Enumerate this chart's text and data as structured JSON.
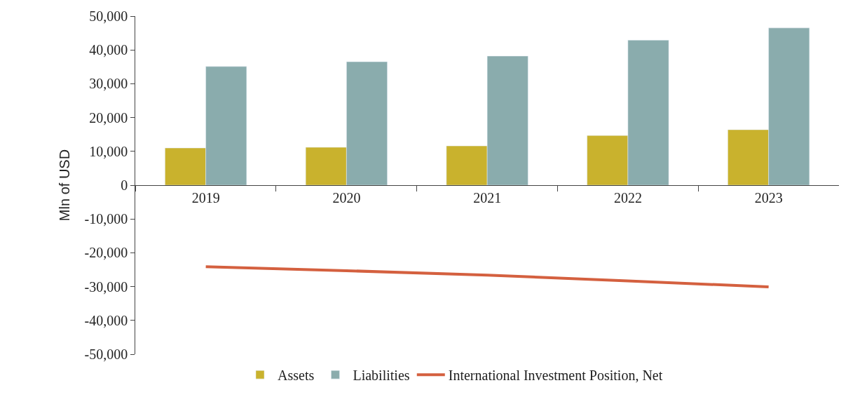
{
  "chart_data": {
    "type": "bar",
    "ylabel": "Mln of USD",
    "categories": [
      "2019",
      "2020",
      "2021",
      "2022",
      "2023"
    ],
    "series": [
      {
        "name": "Assets",
        "color": "#c9b22d",
        "values": [
          11000,
          11200,
          11600,
          14700,
          16400
        ]
      },
      {
        "name": "Liabilities",
        "color": "#8aacad",
        "values": [
          35100,
          36500,
          38200,
          42900,
          46500
        ]
      },
      {
        "name": "International Investment Position, Net",
        "type": "line",
        "color": "#d4603f",
        "values": [
          -24100,
          -25300,
          -26600,
          -28300,
          -30100
        ]
      }
    ],
    "ylim": [
      -50000,
      50000
    ],
    "yticks": [
      {
        "value": -50000,
        "label": "-50,000"
      },
      {
        "value": -40000,
        "label": "-40,000"
      },
      {
        "value": -30000,
        "label": "-30,000"
      },
      {
        "value": -20000,
        "label": "-20,000"
      },
      {
        "value": -10000,
        "label": "-10,000"
      },
      {
        "value": 0,
        "label": "0"
      },
      {
        "value": 10000,
        "label": "10,000"
      },
      {
        "value": 20000,
        "label": "20,000"
      },
      {
        "value": 30000,
        "label": "30,000"
      },
      {
        "value": 40000,
        "label": "40,000"
      },
      {
        "value": 50000,
        "label": "50,000"
      }
    ],
    "grid": false,
    "legend": "bottom",
    "marker": "none",
    "line_style": "solid"
  }
}
